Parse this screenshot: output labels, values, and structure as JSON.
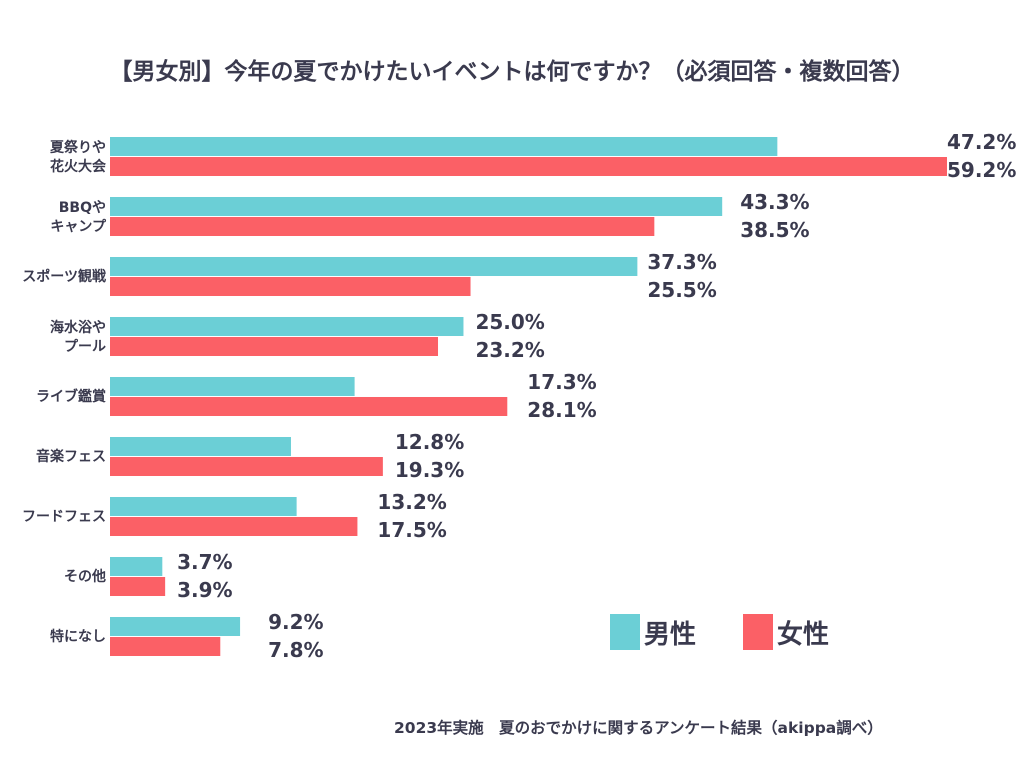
{
  "chart_data": {
    "type": "bar",
    "orientation": "horizontal",
    "title": "【男女別】今年の夏でかけたいイベントは何ですか？（必須回答・複数回答）",
    "categories": [
      [
        "夏祭りや",
        "花火大会"
      ],
      [
        "BBQや",
        "キャンプ"
      ],
      [
        "スポーツ観戦"
      ],
      [
        "海水浴や",
        "プール"
      ],
      [
        "ライブ鑑賞"
      ],
      [
        "音楽フェス"
      ],
      [
        "フードフェス"
      ],
      [
        "その他"
      ],
      [
        "特になし"
      ]
    ],
    "series": [
      {
        "name": "男性",
        "color": "#6bcfd6",
        "values": [
          47.2,
          43.3,
          37.3,
          25.0,
          17.3,
          12.8,
          13.2,
          3.7,
          9.2
        ],
        "labels": [
          "47.2%",
          "43.3%",
          "37.3%",
          "25.0%",
          "17.3%",
          "12.8%",
          "13.2%",
          "3.7%",
          "9.2%"
        ]
      },
      {
        "name": "女性",
        "color": "#fb6066",
        "values": [
          59.2,
          38.5,
          25.5,
          23.2,
          28.1,
          19.3,
          17.5,
          3.9,
          7.8
        ],
        "labels": [
          "59.2%",
          "38.5%",
          "25.5%",
          "23.2%",
          "28.1%",
          "19.3%",
          "17.5%",
          "3.9%",
          "7.8%"
        ]
      }
    ],
    "xlim": [
      0,
      59.2
    ],
    "legend_position": "bottom-right",
    "grid": false,
    "xlabel": "",
    "ylabel": ""
  },
  "footnote": "2023年実施　夏のおでかけに関するアンケート結果（akippa調べ）"
}
